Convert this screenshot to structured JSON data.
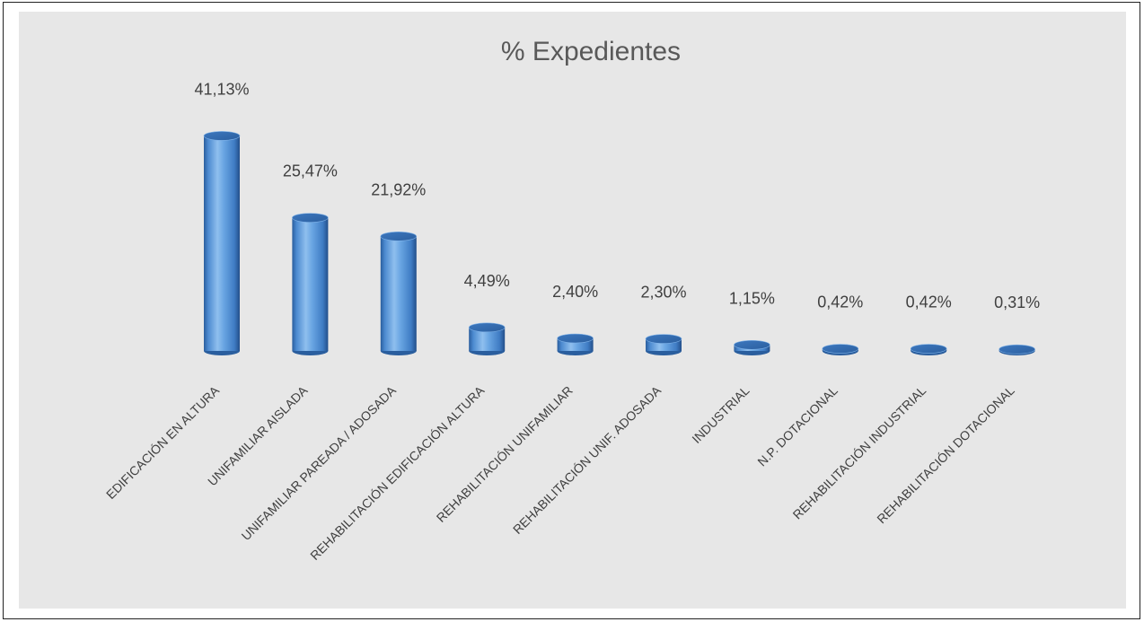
{
  "chart_data": {
    "type": "bar",
    "title": "% Expedientes",
    "categories": [
      "EDIFICACIÓN EN ALTURA",
      "UNIFAMILIAR AISLADA",
      "UNIFAMILIAR PAREADA / ADOSADA",
      "REHABILITACIÓN EDIFICACIÓN ALTURA",
      "REHABILITACIÓN UNIFAMILIAR",
      "REHABILITACIÓN UNIF. ADOSADA",
      "INDUSTRIAL",
      "N.P. DOTACIONAL",
      "REHABILITACIÓN INDUSTRIAL",
      "REHABILITACIÓN DOTACIONAL"
    ],
    "values": [
      41.13,
      25.47,
      21.92,
      4.49,
      2.4,
      2.3,
      1.15,
      0.42,
      0.42,
      0.31
    ],
    "value_labels": [
      "41,13%",
      "25,47%",
      "21,92%",
      "4,49%",
      "2,40%",
      "2,30%",
      "1,15%",
      "0,42%",
      "0,42%",
      "0,31%"
    ],
    "xlabel": "",
    "ylabel": "",
    "ylim": [
      0,
      45
    ],
    "grid": false,
    "legend": "none",
    "bar_style": "3d-cylinder",
    "colors": {
      "bar": "#4f8fd6",
      "bar_dark": "#1f4f8f",
      "bar_light": "#a9cdf2",
      "background": "#e7e7e7",
      "text": "#404040",
      "title": "#595959"
    }
  }
}
